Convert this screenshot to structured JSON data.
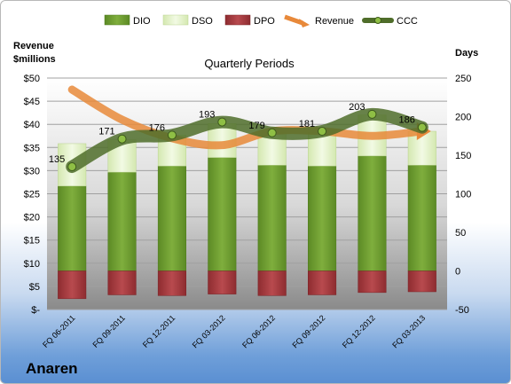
{
  "brand": "Anaren",
  "chart_data": {
    "type": "bar",
    "title": "Quarterly Periods",
    "ylabel_left": "Revenue\n$millions",
    "ylabel_right": "Days",
    "categories": [
      "FQ 06-2011",
      "FQ 09-2011",
      "FQ 12-2011",
      "FQ 03-2012",
      "FQ 06-2012",
      "FQ 09-2012",
      "FQ 12-2012",
      "FQ 03-2013"
    ],
    "left_ticks": [
      "$-",
      "$5",
      "$10",
      "$15",
      "$20",
      "$25",
      "$30",
      "$35",
      "$40",
      "$45",
      "$50"
    ],
    "right_ticks": [
      "-50",
      "0",
      "50",
      "100",
      "150",
      "200",
      "250"
    ],
    "ylim_left": [
      0,
      50
    ],
    "ylim_right": [
      -50,
      250
    ],
    "legend_position": "top",
    "series": [
      {
        "name": "DIO",
        "axis": "right",
        "type": "stacked-bar",
        "color": "#6a9a2e",
        "values": [
          110,
          128,
          136,
          147,
          137,
          136,
          149,
          137
        ]
      },
      {
        "name": "DSO",
        "axis": "right",
        "type": "stacked-bar",
        "color": "#dff0c0",
        "values": [
          55,
          42,
          40,
          44,
          42,
          44,
          53,
          44
        ]
      },
      {
        "name": "DPO",
        "axis": "right",
        "type": "bar-negative",
        "color": "#a3393d",
        "values": [
          -36,
          -31,
          -32,
          -30,
          -32,
          -31,
          -28,
          -27
        ]
      },
      {
        "name": "Revenue",
        "axis": "left",
        "type": "smooth-line",
        "color": "#e8893a",
        "values": [
          47.5,
          41,
          37,
          35.5,
          38.5,
          38.5,
          37.5,
          38.5
        ]
      },
      {
        "name": "CCC",
        "axis": "right",
        "type": "smooth-line-markers",
        "color": "#4f6d2a",
        "values": [
          135,
          171,
          176,
          193,
          179,
          181,
          203,
          186
        ],
        "labels": [
          "135",
          "171",
          "176",
          "193",
          "179",
          "181",
          "203",
          "186"
        ]
      }
    ],
    "grid": true
  }
}
